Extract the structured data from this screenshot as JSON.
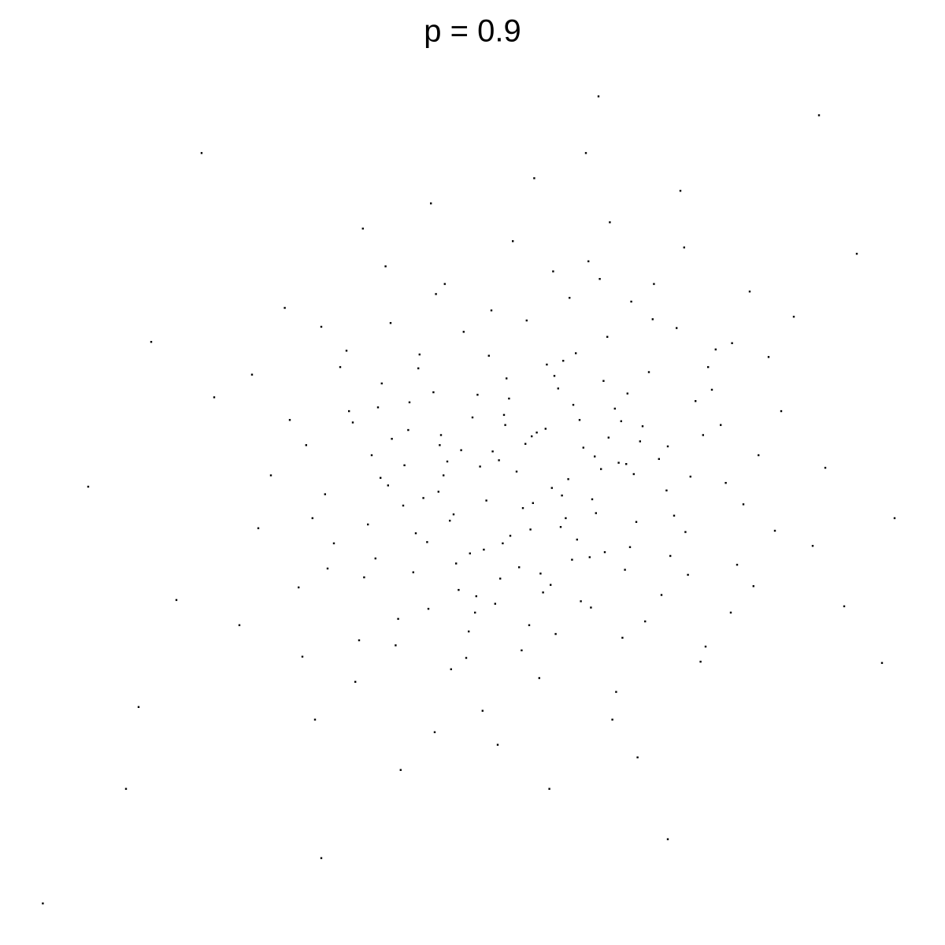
{
  "chart_data": {
    "type": "scatter",
    "title": "p = 0.9",
    "color": "#000000",
    "xlim": [
      -3.85,
      3.15
    ],
    "ylim": [
      -3.44,
      3.19
    ],
    "points": [
      [
        0.12,
        0.35
      ],
      [
        -0.85,
        0.62
      ],
      [
        1.34,
        -0.41
      ],
      [
        -0.42,
        1.18
      ],
      [
        0.67,
        0.09
      ],
      [
        -1.21,
        -0.77
      ],
      [
        0.05,
        -0.22
      ],
      [
        2.1,
        0.55
      ],
      [
        -0.33,
        -1.05
      ],
      [
        0.91,
        1.42
      ],
      [
        -1.67,
        0.28
      ],
      [
        0.44,
        -0.63
      ],
      [
        -0.08,
        0.81
      ],
      [
        1.02,
        -1.12
      ],
      [
        -0.58,
        0.04
      ],
      [
        0.29,
        1.66
      ],
      [
        -2.05,
        -0.38
      ],
      [
        1.55,
        0.72
      ],
      [
        -0.71,
        -0.49
      ],
      [
        0.18,
        -1.57
      ],
      [
        0.83,
        0.47
      ],
      [
        -1.35,
        1.03
      ],
      [
        0.6,
        -0.15
      ],
      [
        -0.19,
        0.23
      ],
      [
        1.27,
        1.21
      ],
      [
        -0.96,
        -1.31
      ],
      [
        0.37,
        0.95
      ],
      [
        -0.5,
        -0.27
      ],
      [
        1.88,
        -0.84
      ],
      [
        -1.1,
        0.58
      ],
      [
        0.02,
        -0.69
      ],
      [
        0.74,
        2.05
      ],
      [
        -0.27,
        -1.83
      ],
      [
        -1.52,
        -0.11
      ],
      [
        1.13,
        0.17
      ],
      [
        0.51,
        -0.96
      ],
      [
        -0.64,
        1.48
      ],
      [
        0.95,
        -0.33
      ],
      [
        -2.4,
        0.66
      ],
      [
        0.23,
        0.41
      ],
      [
        1.46,
        -1.44
      ],
      [
        -0.89,
        0.12
      ],
      [
        0.08,
        1.27
      ],
      [
        -0.37,
        -0.58
      ],
      [
        0.69,
        0.79
      ],
      [
        -1.02,
        -0.04
      ],
      [
        1.71,
        1.09
      ],
      [
        -0.15,
        -2.1
      ],
      [
        0.41,
        0.01
      ],
      [
        -0.78,
        0.89
      ],
      [
        2.35,
        -0.52
      ],
      [
        -1.28,
        -1.6
      ],
      [
        0.57,
        1.74
      ],
      [
        -0.05,
        -0.44
      ],
      [
        0.98,
        0.31
      ],
      [
        -0.46,
        -0.87
      ],
      [
        1.19,
        -0.08
      ],
      [
        -1.84,
        1.37
      ],
      [
        0.31,
        -1.22
      ],
      [
        0.86,
        -0.71
      ],
      [
        -0.6,
        0.36
      ],
      [
        0.14,
        2.4
      ],
      [
        -1.15,
        0.2
      ],
      [
        1.62,
        0.44
      ],
      [
        -0.24,
        -0.16
      ],
      [
        0.47,
        1.01
      ],
      [
        -0.92,
        -2.3
      ],
      [
        1.05,
        0.86
      ],
      [
        -0.1,
        0.52
      ],
      [
        2.6,
        -1.0
      ],
      [
        -1.45,
        -0.5
      ],
      [
        0.35,
        -0.37
      ],
      [
        -0.68,
        2.2
      ],
      [
        0.79,
        -1.68
      ],
      [
        -0.31,
        0.68
      ],
      [
        1.38,
        0.03
      ],
      [
        -2.2,
        -1.15
      ],
      [
        0.21,
        -0.89
      ],
      [
        -0.55,
        0.15
      ],
      [
        1.09,
        1.56
      ],
      [
        0.63,
        -0.26
      ],
      [
        -1.07,
        0.77
      ],
      [
        0.0,
        0.07
      ],
      [
        1.8,
        -0.19
      ],
      [
        -0.82,
        -0.73
      ],
      [
        0.45,
        0.6
      ],
      [
        -1.6,
        -1.9
      ],
      [
        0.9,
        -0.53
      ],
      [
        -0.2,
        1.35
      ],
      [
        0.28,
        -0.06
      ],
      [
        -1.3,
        0.46
      ],
      [
        1.5,
        -1.32
      ],
      [
        -0.4,
        -1.41
      ],
      [
        0.72,
        1.14
      ],
      [
        -0.99,
        0.33
      ],
      [
        2.0,
        0.98
      ],
      [
        -0.13,
        -0.78
      ],
      [
        0.53,
        0.26
      ],
      [
        -1.73,
        -0.85
      ],
      [
        1.22,
        -0.6
      ],
      [
        -0.62,
        -0.09
      ],
      [
        0.1,
        -1.15
      ],
      [
        0.88,
        0.69
      ],
      [
        -0.35,
        0.5
      ],
      [
        -2.7,
        -0.95
      ],
      [
        1.33,
        1.85
      ],
      [
        0.39,
        -0.3
      ],
      [
        -0.77,
        1.0
      ],
      [
        0.16,
        0.38
      ],
      [
        -1.18,
        -0.35
      ],
      [
        1.66,
        -0.02
      ],
      [
        -0.03,
        1.9
      ],
      [
        0.59,
        -1.01
      ],
      [
        -0.9,
        -0.2
      ],
      [
        1.0,
        0.43
      ],
      [
        -0.48,
        -0.66
      ],
      [
        2.2,
        1.3
      ],
      [
        -1.4,
        0.9
      ],
      [
        0.26,
        -2.45
      ],
      [
        -0.7,
        -1.02
      ],
      [
        0.81,
        0.14
      ],
      [
        -0.22,
        0.99
      ],
      [
        1.42,
        0.63
      ],
      [
        -1.95,
        0.04
      ],
      [
        0.33,
        0.73
      ],
      [
        -0.52,
        -1.5
      ],
      [
        1.15,
        -0.91
      ],
      [
        0.66,
        1.6
      ],
      [
        -1.12,
        -0.62
      ],
      [
        0.07,
        0.29
      ],
      [
        1.75,
        -0.67
      ],
      [
        -0.86,
        0.4
      ],
      [
        0.48,
        -0.47
      ],
      [
        -1.55,
        1.22
      ],
      [
        0.93,
        0.05
      ],
      [
        -0.17,
        -0.98
      ],
      [
        0.3,
        0.83
      ],
      [
        -1.25,
        -1.27
      ],
      [
        1.58,
        1.04
      ],
      [
        -0.44,
        0.24
      ],
      [
        0.76,
        -1.9
      ],
      [
        -1.04,
        1.7
      ],
      [
        1.92,
        0.2
      ],
      [
        -0.11,
        -0.5
      ],
      [
        0.55,
        2.6
      ],
      [
        -1.8,
        0.48
      ],
      [
        1.25,
        -0.28
      ],
      [
        -0.66,
        0.7
      ],
      [
        0.19,
        -0.74
      ],
      [
        0.84,
        -1.25
      ],
      [
        -0.29,
        0.11
      ],
      [
        -3.0,
        -1.8
      ],
      [
        1.48,
        0.36
      ],
      [
        0.42,
        1.45
      ],
      [
        -0.74,
        -0.14
      ],
      [
        0.11,
        -0.39
      ],
      [
        -1.22,
        2.0
      ],
      [
        1.7,
        -1.05
      ],
      [
        -0.06,
        0.65
      ],
      [
        0.62,
        0.19
      ],
      [
        -0.94,
        -1.1
      ],
      [
        1.08,
        1.28
      ],
      [
        -0.53,
        -0.32
      ],
      [
        2.45,
        0.1
      ],
      [
        -1.5,
        -0.7
      ],
      [
        0.24,
        0.92
      ],
      [
        -0.65,
        -2.0
      ],
      [
        0.78,
        0.57
      ],
      [
        -0.26,
        -0.55
      ],
      [
        1.36,
        -0.75
      ],
      [
        -2.1,
        0.84
      ],
      [
        0.36,
        -0.12
      ],
      [
        -0.57,
        1.56
      ],
      [
        1.2,
        0.27
      ],
      [
        0.7,
        -0.57
      ],
      [
        -1.08,
        0.02
      ],
      [
        0.04,
        -1.35
      ],
      [
        1.85,
        1.5
      ],
      [
        -0.8,
        -0.42
      ],
      [
        0.5,
        0.48
      ],
      [
        -1.62,
        -0.3
      ],
      [
        0.96,
        -2.2
      ],
      [
        -0.14,
        0.16
      ],
      [
        0.27,
        -0.83
      ],
      [
        -1.33,
        0.55
      ],
      [
        1.52,
        0.9
      ],
      [
        -0.38,
        -1.2
      ],
      [
        0.73,
        0.34
      ],
      [
        -1.0,
        1.25
      ],
      [
        2.05,
        -0.4
      ],
      [
        -0.09,
        0.44
      ],
      [
        0.58,
        -0.61
      ],
      [
        -1.7,
        -1.4
      ],
      [
        1.3,
        2.3
      ],
      [
        -0.61,
        0.28
      ],
      [
        0.13,
        -0.18
      ],
      [
        0.87,
        0.13
      ],
      [
        -0.32,
        -0.92
      ],
      [
        -3.76,
        -3.36
      ],
      [
        2.9,
        -1.45
      ],
      [
        -3.4,
        -0.05
      ],
      [
        3.0,
        -0.3
      ],
      [
        -2.9,
        1.1
      ],
      [
        2.7,
        1.8
      ],
      [
        -3.1,
        -2.45
      ],
      [
        -2.5,
        2.6
      ],
      [
        2.4,
        2.9
      ],
      [
        0.65,
        3.05
      ],
      [
        -1.55,
        -3.0
      ],
      [
        1.2,
        -2.85
      ]
    ]
  }
}
